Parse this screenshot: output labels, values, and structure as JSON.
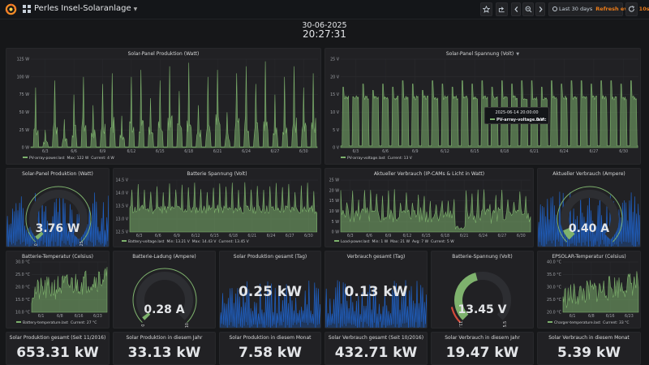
{
  "nav": {
    "title": "Perles Insel-Solaranlage",
    "time_range": "Last 30 days",
    "refresh": "Refresh every 10s"
  },
  "header": {
    "date": "30-06-2025",
    "time": "20:27:31"
  },
  "colors": {
    "series_green": "#7eb26d",
    "bg_blue": "#1f60c4",
    "gauge_red": "#d44a3a",
    "text_orange": "#eb7b18"
  },
  "panels": {
    "solar_production": {
      "title": "Solar-Panel Produktion (Watt)",
      "legend": {
        "series": "PV-array-power.last",
        "max": "Max: 122 W",
        "current": "Current: 4 W"
      },
      "chart_data": {
        "type": "area",
        "series": [
          {
            "name": "PV-array-power.last"
          }
        ],
        "ylim": [
          0,
          125
        ],
        "yticks": [
          "0 W",
          "25 W",
          "50 W",
          "75 W",
          "100 W",
          "125 W"
        ],
        "xticks": [
          "6/3",
          "6/6",
          "6/9",
          "6/12",
          "6/15",
          "6/18",
          "6/21",
          "6/24",
          "6/27",
          "6/30"
        ],
        "daily_peak_w": [
          85,
          25,
          95,
          40,
          75,
          100,
          60,
          90,
          105,
          45,
          100,
          110,
          70,
          95,
          115,
          80,
          120,
          60,
          100,
          110,
          50,
          105,
          115,
          90,
          122,
          75,
          100,
          115,
          85,
          105
        ]
      }
    },
    "solar_voltage": {
      "title": "Solar-Panel Spannung (Volt)",
      "legend": {
        "series": "PV-array-voltage.last",
        "current": "Current: 13 V"
      },
      "tooltip": {
        "time": "2025-06-14 20:00:00",
        "series": "PV-array-voltage.last:",
        "value": "0 V"
      },
      "chart_data": {
        "type": "area",
        "series": [
          {
            "name": "PV-array-voltage.last"
          }
        ],
        "ylim": [
          0,
          25
        ],
        "yticks": [
          "0 V",
          "5 V",
          "10 V",
          "15 V",
          "20 V",
          "25 V"
        ],
        "xticks": [
          "6/3",
          "6/6",
          "6/9",
          "6/12",
          "6/15",
          "6/18",
          "6/21",
          "6/24",
          "6/27",
          "6/30"
        ],
        "daily_peak_v": [
          19,
          16,
          20,
          18,
          20,
          19,
          21,
          20,
          18,
          21,
          20,
          19,
          21,
          20,
          21,
          19,
          21,
          20,
          21,
          21,
          19,
          21,
          20,
          21,
          21,
          20,
          21,
          21,
          20,
          21
        ]
      }
    },
    "gauge_solar_w": {
      "title": "Solar-Panel Produktion (Watt)",
      "value": "3.76 W",
      "min": "0",
      "max": "125"
    },
    "battery_voltage": {
      "title": "Batterie Spannung (Volt)",
      "legend": {
        "series": "Battery-voltage.last",
        "min": "Min: 13.21 V",
        "max": "Max: 14.43 V",
        "current": "Current: 13.45 V"
      },
      "chart_data": {
        "type": "area",
        "series": [
          {
            "name": "Battery-voltage.last"
          }
        ],
        "ylim": [
          12.5,
          14.5
        ],
        "yticks": [
          "12.5 V",
          "13.0 V",
          "13.5 V",
          "14.0 V",
          "14.5 V"
        ],
        "xticks": [
          "6/3",
          "6/6",
          "6/9",
          "6/12",
          "6/15",
          "6/18",
          "6/21",
          "6/24",
          "6/27",
          "6/30"
        ]
      }
    },
    "load_power": {
      "title": "Aktueller Verbrauch (IP-CAMs & Licht in Watt)",
      "legend": {
        "series": "Load-power.last",
        "min": "Min: 1 W",
        "max": "Max: 21 W",
        "avg": "Avg: 7 W",
        "current": "Current: 5 W"
      },
      "chart_data": {
        "type": "area",
        "series": [
          {
            "name": "Load-power.last"
          }
        ],
        "ylim": [
          0,
          25
        ],
        "yticks": [
          "0 W",
          "5 W",
          "10 W",
          "15 W",
          "20 W",
          "25 W"
        ],
        "xticks": [
          "6/3",
          "6/6",
          "6/9",
          "6/12",
          "6/15",
          "6/18",
          "6/21",
          "6/24",
          "6/27",
          "6/30"
        ]
      }
    },
    "gauge_load_a": {
      "title": "Aktueller Verbrauch (Ampere)",
      "value": "0.40 A"
    },
    "battery_temp": {
      "title": "Batterie-Temperatur (Celsius)",
      "legend": {
        "series": "Battery-temperature.last",
        "current": "Current: 27 °C"
      },
      "chart_data": {
        "type": "area",
        "series": [
          {
            "name": "Battery-temperature.last"
          }
        ],
        "ylim": [
          10,
          30
        ],
        "yticks": [
          "10.0 °C",
          "15.0 °C",
          "20.0 °C",
          "25.0 °C",
          "30.0 °C"
        ],
        "xticks": [
          "6/1",
          "6/8",
          "6/16",
          "6/23"
        ]
      }
    },
    "gauge_charge_a": {
      "title": "Batterie-Ladung (Ampere)",
      "value": "0.28 A",
      "min": "0",
      "max": "10"
    },
    "stat_prod_day": {
      "title": "Solar Produktion gesamt (Tag)",
      "value": "0.25 kW"
    },
    "stat_cons_day": {
      "title": "Verbrauch gesamt (Tag)",
      "value": "0.13 kW"
    },
    "gauge_batt_v": {
      "title": "Batterie-Spannung (Volt)",
      "value": "13.45 V",
      "min": "11.8",
      "max": "15.5"
    },
    "epsolar_temp": {
      "title": "EPSOLAR-Temperatur (Celsius)",
      "legend": {
        "series": "Charger-temperature.last",
        "current": "Current: 33 °C"
      },
      "chart_data": {
        "type": "area",
        "series": [
          {
            "name": "Charger-temperature.last"
          }
        ],
        "ylim": [
          20,
          40
        ],
        "yticks": [
          "20.0 °C",
          "25.0 °C",
          "30.0 °C",
          "35.0 °C",
          "40.0 °C"
        ],
        "xticks": [
          "6/1",
          "6/8",
          "6/16",
          "6/23"
        ]
      }
    },
    "totals": [
      {
        "title": "Solar Produktion gesamt (Seit 11/2016)",
        "value": "653.31 kW"
      },
      {
        "title": "Solar Produktion in diesem Jahr",
        "value": "33.13 kW"
      },
      {
        "title": "Solar Produktion in diesem Monat",
        "value": "7.58 kW"
      },
      {
        "title": "Solar Verbrauch gesamt (Seit 10/2016)",
        "value": "432.71 kW"
      },
      {
        "title": "Solar Verbrauch in diesem Jahr",
        "value": "19.47 kW"
      },
      {
        "title": "Solar Verbrauch in diesem Monat",
        "value": "5.39 kW"
      }
    ]
  }
}
